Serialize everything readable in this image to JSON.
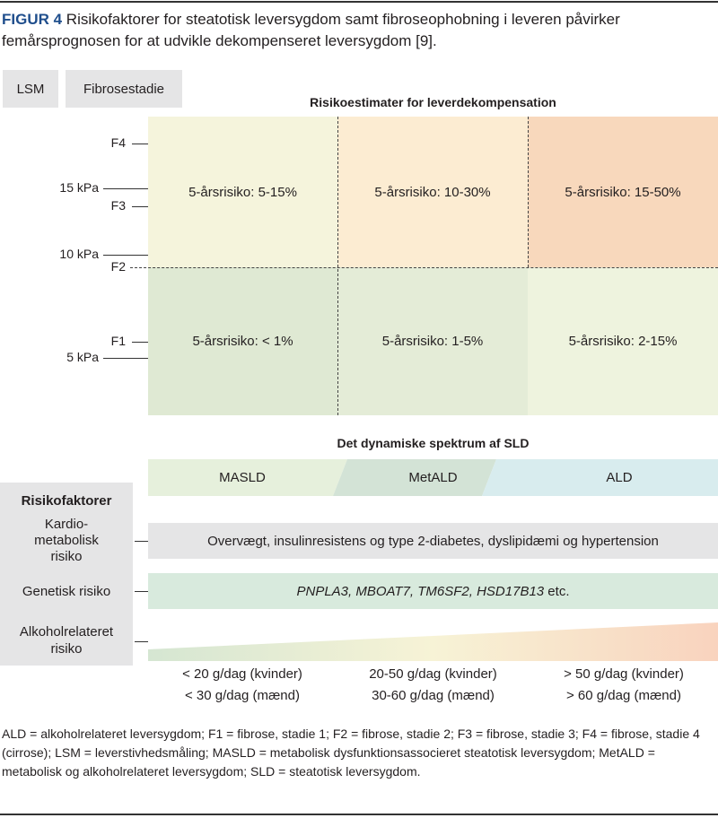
{
  "caption": {
    "label": "FIGUR 4",
    "text": " Risikofaktorer for steatotisk leversygdom samt fibroseophobning i leveren påvirker femårsprognosen for at udvikle dekompenseret leversygdom [9]."
  },
  "headers": {
    "lsm": "LSM",
    "fibrose": "Fibrosestadie"
  },
  "grid": {
    "title": "Risikoestimater for leverdekompensation",
    "cells": [
      "5-årsrisiko: 5-15%",
      "5-årsrisiko: 10-30%",
      "5-årsrisiko: 15-50%",
      "5-årsrisiko: < 1%",
      "5-årsrisiko: 1-5%",
      "5-årsrisiko: 2-15%"
    ],
    "colors": [
      "#f5f4dc",
      "#fcecd2",
      "#f8d8bc",
      "#dfe9d3",
      "#e4ecd7",
      "#eef3de"
    ]
  },
  "axis": {
    "f4": "F4",
    "kpa15": "15 kPa",
    "f3": "F3",
    "kpa10": "10 kPa",
    "f2": "F2",
    "f1": "F1",
    "kpa5": "5 kPa"
  },
  "spectrum": {
    "title": "Det dynamiske spektrum af SLD",
    "items": [
      "MASLD",
      "MetALD",
      "ALD"
    ]
  },
  "risk": {
    "title": "Risikofaktorer",
    "kardio": "Kardio-\nmetabolisk\nrisiko",
    "genetic": "Genetisk risiko",
    "alcohol": "Alkoholrelateret\nrisiko",
    "kardio_text": "Overvægt, insulinresistens og type 2-diabetes, dyslipidæmi og hypertension",
    "genetic_genes": "PNPLA3, MBOAT7, TM6SF2, HSD17B13",
    "genetic_etc": " etc."
  },
  "alcohol_levels": [
    [
      "< 20 g/dag (kvinder)",
      "< 30 g/dag (mænd)"
    ],
    [
      "20-50 g/dag (kvinder)",
      "30-60 g/dag (mænd)"
    ],
    [
      "> 50 g/dag (kvinder)",
      "> 60 g/dag (mænd)"
    ]
  ],
  "footnote": "ALD = alkoholrelateret leversygdom; F1 = fibrose, stadie 1; F2 = fibrose, stadie 2; F3 = fibrose, stadie 3; F4 = fibrose, stadie 4 (cirrose); LSM = leverstivhedsmåling; MASLD = metabolisk dysfunktionsassocieret steatotisk leversygdom; MetALD = metabolisk og alkoholrelateret leversygdom; SLD = steatotisk leversygdom."
}
